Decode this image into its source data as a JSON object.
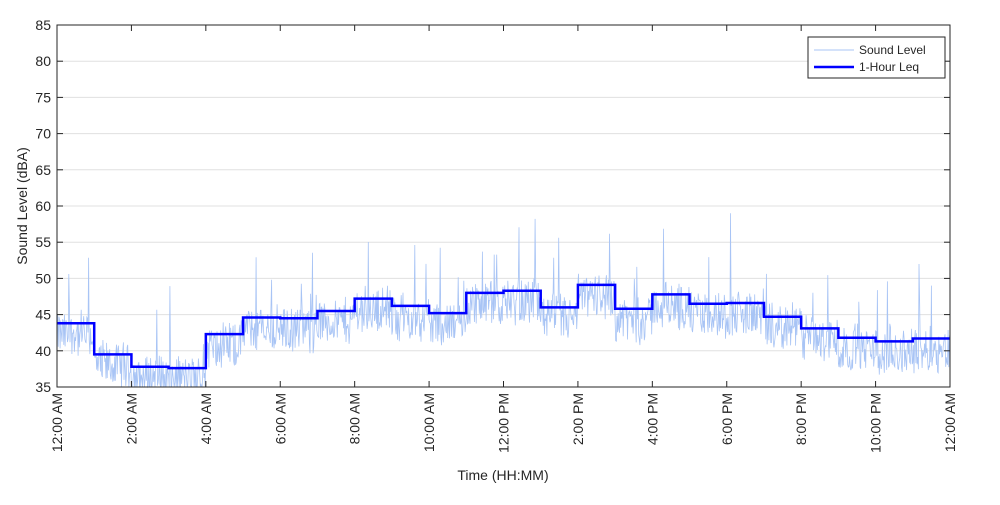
{
  "chart_data": {
    "type": "line",
    "title": "",
    "xlabel": "Time (HH:MM)",
    "ylabel": "Sound Level (dBA)",
    "ylim": [
      35,
      85
    ],
    "yticks": [
      35,
      40,
      45,
      50,
      55,
      60,
      65,
      70,
      75,
      80,
      85
    ],
    "xlim_hours": [
      0,
      24
    ],
    "xtick_hours": [
      0,
      2,
      4,
      6,
      8,
      10,
      12,
      14,
      16,
      18,
      20,
      22,
      24
    ],
    "xtick_labels": [
      "12:00 AM",
      "2:00 AM",
      "4:00 AM",
      "6:00 AM",
      "8:00 AM",
      "10:00 AM",
      "12:00 PM",
      "2:00 PM",
      "4:00 PM",
      "6:00 PM",
      "8:00 PM",
      "10:00 PM",
      "12:00 AM"
    ],
    "grid": "horizontal",
    "legend_position": "top-right",
    "series": [
      {
        "name": "Sound Level",
        "color": "#a8c4f5",
        "style": "thin noisy line around hourly Leq, peak ~59 dBA near 6:00 PM"
      },
      {
        "name": "1-Hour Leq",
        "color": "#0000ff",
        "style": "step",
        "hour_start": [
          0,
          1,
          2,
          3,
          4,
          5,
          6,
          7,
          8,
          9,
          10,
          11,
          12,
          13,
          14,
          15,
          16,
          17,
          18,
          19,
          20,
          21,
          22,
          23
        ],
        "values": [
          43.8,
          39.5,
          37.8,
          37.6,
          42.3,
          44.6,
          44.5,
          45.5,
          47.2,
          46.2,
          45.2,
          48.0,
          48.3,
          46.0,
          49.1,
          45.8,
          47.8,
          46.5,
          46.6,
          44.7,
          43.1,
          41.8,
          41.3,
          41.7
        ]
      }
    ]
  }
}
